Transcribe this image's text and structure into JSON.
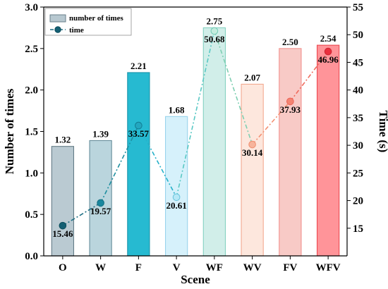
{
  "chart_data": {
    "type": "bar",
    "categories": [
      "O",
      "W",
      "F",
      "V",
      "WF",
      "WV",
      "FV",
      "WFV"
    ],
    "series": [
      {
        "name": "number of times",
        "type": "bar",
        "axis": "left",
        "values": [
          1.32,
          1.39,
          2.21,
          1.68,
          2.75,
          2.07,
          2.5,
          2.54
        ],
        "labels": [
          "1.32",
          "1.39",
          "2.21",
          "1.68",
          "2.75",
          "2.07",
          "2.50",
          "2.54"
        ],
        "fill_colors": [
          "#b7c8d0",
          "#b7d3dc",
          "#1bb7cf",
          "#d4f1fb",
          "#cfeee8",
          "#fde6dc",
          "#f8c8c4",
          "#ff8f94"
        ],
        "stroke_colors": [
          "#5c7580",
          "#5f8996",
          "#0e8fa7",
          "#94d2ec",
          "#7fcfbe",
          "#f2a58a",
          "#f08c88",
          "#ea3f47"
        ]
      },
      {
        "name": "time",
        "type": "line",
        "axis": "right",
        "values": [
          15.46,
          19.57,
          33.57,
          20.61,
          50.68,
          30.14,
          37.93,
          46.96
        ],
        "labels": [
          "15.46",
          "19.57",
          "33.57",
          "20.61",
          "50.68",
          "30.14",
          "37.93",
          "46.96"
        ],
        "segment_colors": [
          "#1f6f84",
          "#1f8fa0",
          "#25b1c9",
          "#59c8c4",
          "#7fcfb2",
          "#f38e70",
          "#ef6b5d"
        ],
        "point_fill_colors": [
          "#145f73",
          "#1a879e",
          "#23a7c0",
          "#b7e8f6",
          "#c4ecde",
          "#f7b49b",
          "#f48472",
          "#ea2f3d"
        ],
        "point_stroke_colors": [
          "#0b4d5d",
          "#126f82",
          "#117d93",
          "#6ac5dc",
          "#71cbb5",
          "#ef8f70",
          "#ea6357",
          "#c92431"
        ]
      }
    ],
    "xlabel": "Scene",
    "ylabel_left": "Number of times",
    "ylabel_right": "Time (s)",
    "ylim_left": [
      0.0,
      3.0
    ],
    "ylim_right": [
      10,
      55
    ],
    "yticks_left": [
      "0.0",
      "0.5",
      "1.0",
      "1.5",
      "2.0",
      "2.5",
      "3.0"
    ],
    "yticks_right": [
      "15",
      "20",
      "25",
      "30",
      "35",
      "40",
      "45",
      "50",
      "55"
    ],
    "grid": false,
    "legend": {
      "placement": "top-left",
      "entries": [
        "number of times",
        "time"
      ]
    }
  }
}
